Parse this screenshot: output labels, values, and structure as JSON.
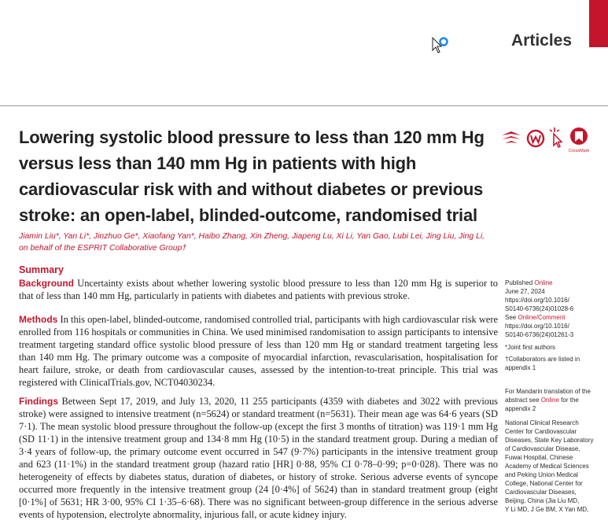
{
  "header": {
    "section_label": "Articles"
  },
  "article": {
    "title": "Lowering systolic blood pressure to less than 120 mm Hg versus less than 140 mm Hg in patients with high cardiovascular risk with and without diabetes or previous stroke: an open-label, blinded-outcome, randomised trial",
    "authors": "Jiamin Liu*, Yan Li*, Jinzhuo Ge*, Xiaofang Yan*, Haibo Zhang, Xin Zheng, Jiapeng Lu, Xi Li, Yan Gao, Lubi Lei, Jing Liu, Jing Li, on behalf of the ESPRIT Collaborative Group†",
    "crossmark_label": "CrossMark",
    "summary_heading": "Summary",
    "background_label": "Background",
    "background_text": "Uncertainty exists about whether lowering systolic blood pressure to less than 120 mm Hg is superior to that of less than 140 mm Hg, particularly in patients with diabetes and patients with previous stroke.",
    "methods_label": "Methods",
    "methods_text": "In this open-label, blinded-outcome, randomised controlled trial, participants with high cardiovascular risk were enrolled from 116 hospitals or communities in China. We used minimised randomisation to assign participants to intensive treatment targeting standard office systolic blood pressure of less than 120 mm Hg or standard treatment targeting less than 140 mm Hg. The primary outcome was a composite of myocardial infarction, revascularisation, hospitalisation for heart failure, stroke, or death from cardiovascular causes, assessed by the intention-to-treat principle. This trial was registered with ClinicalTrials.gov, NCT04030234.",
    "findings_label": "Findings",
    "findings_text": "Between Sept 17, 2019, and July 13, 2020, 11 255 participants (4359 with diabetes and 3022 with previous stroke) were assigned to intensive treatment (n=5624) or standard treatment (n=5631). Their mean age was 64·6 years (SD 7·1). The mean systolic blood pressure throughout the follow-up (except the first 3 months of titration) was 119·1 mm Hg (SD 11·1) in the intensive treatment group and 134·8 mm Hg (10·5) in the standard treatment group. During a median of 3·4 years of follow-up, the primary outcome event occurred in 547 (9·7%) participants in the intensive treatment group and 623 (11·1%) in the standard treatment group (hazard ratio [HR] 0·88, 95% CI 0·78–0·99; p=0·028). There was no heterogeneity of effects by diabetes status, duration of diabetes, or history of stroke. Serious adverse events of syncope occurred more frequently in the intensive treatment group (24 [0·4%] of 5624) than in standard treatment group (eight [0·1%] of 5631; HR 3·00, 95% CI 1·35–6·68). There was no significant between-group difference in the serious adverse events of hypotension, electrolyte abnormality, injurious fall, or acute kidney injury."
  },
  "sidebar": {
    "published_prefix": "Published",
    "published_link": "Online",
    "published_date": "June 27, 2024",
    "doi_1": "https://doi.org/10.1016/",
    "doi_1b": "S0140-6736(24)01028-6",
    "see_prefix": "See",
    "see_link": "Online/Comment",
    "doi_2": "https://doi.org/10.1016/",
    "doi_2b": "S0140-6736(24)01261-3",
    "joint_first": "*Joint first authors",
    "collab_1": "†Collaborators are listed in",
    "collab_2": "appendix 1",
    "mandarin_1": "For Mandarin translation of the",
    "mandarin_2": "abstract see",
    "mandarin_link": "Online",
    "mandarin_3": "for the",
    "mandarin_4": "appendix 2",
    "affil_1": "National Clinical Research",
    "affil_2": "Center for Cardiovascular",
    "affil_3": "Diseases, State Key Laboratory",
    "affil_4": "of Cardiovascular Disease,",
    "affil_5": "Fuwai Hospital, Chinese",
    "affil_6": "Academy of Medical Sciences",
    "affil_7": "and Peking Union Medical",
    "affil_8": "College, National Center for",
    "affil_9": "Cardiovascular Diseases,",
    "affil_10": "Beijing, China",
    "affil_10b": "(Jia Liu MD,",
    "affil_11": "Y Li MD, J Ge BM, X Yan MD,"
  },
  "colors": {
    "accent_red": "#c3162d",
    "text": "#1f1f1f"
  }
}
